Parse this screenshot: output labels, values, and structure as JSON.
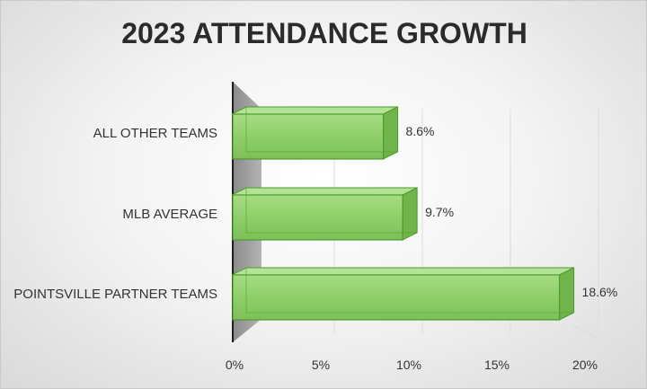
{
  "chart_data": {
    "type": "bar",
    "orientation": "horizontal",
    "title": "2023 ATTENDANCE GROWTH",
    "categories": [
      "ALL OTHER TEAMS",
      "MLB AVERAGE",
      "POINTSVILLE PARTNER TEAMS"
    ],
    "values": [
      8.6,
      9.7,
      18.6
    ],
    "data_labels": [
      "8.6%",
      "9.7%",
      "18.6%"
    ],
    "xlim": [
      0,
      20
    ],
    "x_ticks": [
      0,
      5,
      10,
      15,
      20
    ],
    "x_tick_labels": [
      "0%",
      "5%",
      "10%",
      "15%",
      "20%"
    ],
    "grid": true,
    "legend": "none",
    "style": "3d",
    "colors": {
      "bar_fill": "#8fcf6a",
      "bar_stroke": "#4f9a2f",
      "wall": "#9a9a9a"
    }
  }
}
